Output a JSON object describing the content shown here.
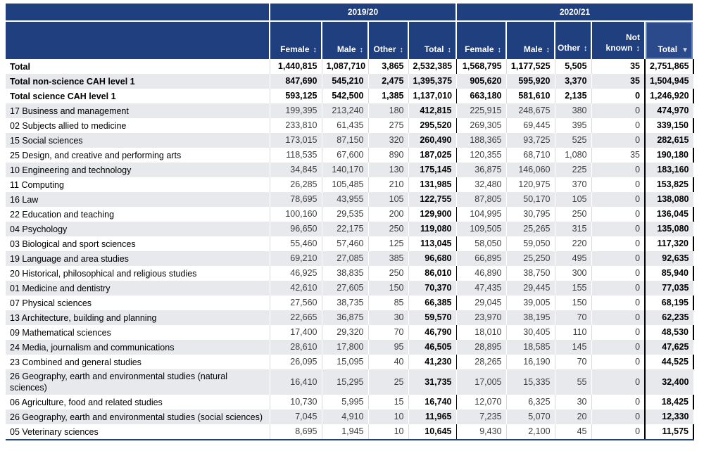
{
  "table": {
    "year_groups": [
      {
        "label": "2019/20",
        "span": 4
      },
      {
        "label": "2020/21",
        "span": 5
      }
    ],
    "columns": [
      {
        "label": "Female",
        "arrow": "↕"
      },
      {
        "label": "Male",
        "arrow": "↕"
      },
      {
        "label": "Other",
        "arrow": "↕"
      },
      {
        "label": "Total",
        "arrow": "↕"
      },
      {
        "label": "Female",
        "arrow": "↕"
      },
      {
        "label": "Male",
        "arrow": "↕"
      },
      {
        "label": "Other",
        "arrow": "↕"
      },
      {
        "label": "Not known",
        "arrow": "↕"
      },
      {
        "label": "Total",
        "arrow": "▼"
      }
    ],
    "rows": [
      {
        "label": "Total",
        "bold": true,
        "values": [
          "1,440,815",
          "1,087,710",
          "3,865",
          "2,532,385",
          "1,568,795",
          "1,177,525",
          "5,505",
          "35",
          "2,751,865"
        ]
      },
      {
        "label": "Total non-science CAH level 1",
        "bold": true,
        "values": [
          "847,690",
          "545,210",
          "2,475",
          "1,395,375",
          "905,620",
          "595,920",
          "3,370",
          "35",
          "1,504,945"
        ]
      },
      {
        "label": "Total science CAH level 1",
        "bold": true,
        "values": [
          "593,125",
          "542,500",
          "1,385",
          "1,137,010",
          "663,180",
          "581,610",
          "2,135",
          "0",
          "1,246,920"
        ]
      },
      {
        "label": "17 Business and management",
        "bold": false,
        "values": [
          "199,395",
          "213,240",
          "180",
          "412,815",
          "225,915",
          "248,675",
          "380",
          "0",
          "474,970"
        ]
      },
      {
        "label": "02 Subjects allied to medicine",
        "bold": false,
        "values": [
          "233,810",
          "61,435",
          "275",
          "295,520",
          "269,305",
          "69,445",
          "395",
          "0",
          "339,150"
        ]
      },
      {
        "label": "15 Social sciences",
        "bold": false,
        "values": [
          "173,015",
          "87,150",
          "320",
          "260,490",
          "188,365",
          "93,725",
          "525",
          "0",
          "282,615"
        ]
      },
      {
        "label": "25 Design, and creative and performing arts",
        "bold": false,
        "values": [
          "118,535",
          "67,600",
          "890",
          "187,025",
          "120,355",
          "68,710",
          "1,080",
          "35",
          "190,180"
        ]
      },
      {
        "label": "10 Engineering and technology",
        "bold": false,
        "values": [
          "34,845",
          "140,170",
          "130",
          "175,145",
          "36,875",
          "146,060",
          "225",
          "0",
          "183,160"
        ]
      },
      {
        "label": "11 Computing",
        "bold": false,
        "values": [
          "26,285",
          "105,485",
          "210",
          "131,985",
          "32,480",
          "120,975",
          "370",
          "0",
          "153,825"
        ]
      },
      {
        "label": "16 Law",
        "bold": false,
        "values": [
          "78,695",
          "43,955",
          "105",
          "122,755",
          "87,805",
          "50,170",
          "105",
          "0",
          "138,080"
        ]
      },
      {
        "label": "22 Education and teaching",
        "bold": false,
        "values": [
          "100,160",
          "29,535",
          "200",
          "129,900",
          "104,995",
          "30,795",
          "250",
          "0",
          "136,045"
        ]
      },
      {
        "label": "04 Psychology",
        "bold": false,
        "values": [
          "96,650",
          "22,175",
          "250",
          "119,080",
          "109,505",
          "25,265",
          "315",
          "0",
          "135,080"
        ]
      },
      {
        "label": "03 Biological and sport sciences",
        "bold": false,
        "values": [
          "55,460",
          "57,460",
          "125",
          "113,045",
          "58,050",
          "59,050",
          "220",
          "0",
          "117,320"
        ]
      },
      {
        "label": "19 Language and area studies",
        "bold": false,
        "values": [
          "69,210",
          "27,085",
          "385",
          "96,680",
          "66,895",
          "25,250",
          "495",
          "0",
          "92,635"
        ]
      },
      {
        "label": "20 Historical, philosophical and religious studies",
        "bold": false,
        "values": [
          "46,925",
          "38,835",
          "250",
          "86,010",
          "46,890",
          "38,750",
          "300",
          "0",
          "85,940"
        ]
      },
      {
        "label": "01 Medicine and dentistry",
        "bold": false,
        "values": [
          "42,610",
          "27,605",
          "150",
          "70,370",
          "47,435",
          "29,445",
          "155",
          "0",
          "77,035"
        ]
      },
      {
        "label": "07 Physical sciences",
        "bold": false,
        "values": [
          "27,560",
          "38,735",
          "85",
          "66,385",
          "29,045",
          "39,005",
          "150",
          "0",
          "68,195"
        ]
      },
      {
        "label": "13 Architecture, building and planning",
        "bold": false,
        "values": [
          "22,665",
          "36,875",
          "30",
          "59,570",
          "23,970",
          "38,195",
          "70",
          "0",
          "62,235"
        ]
      },
      {
        "label": "09 Mathematical sciences",
        "bold": false,
        "values": [
          "17,400",
          "29,320",
          "70",
          "46,790",
          "18,010",
          "30,405",
          "110",
          "0",
          "48,530"
        ]
      },
      {
        "label": "24 Media, journalism and communications",
        "bold": false,
        "values": [
          "28,610",
          "17,800",
          "95",
          "46,505",
          "28,895",
          "18,585",
          "145",
          "0",
          "47,625"
        ]
      },
      {
        "label": "23 Combined and general studies",
        "bold": false,
        "values": [
          "26,095",
          "15,095",
          "40",
          "41,230",
          "28,265",
          "16,190",
          "70",
          "0",
          "44,525"
        ]
      },
      {
        "label": "26 Geography, earth and environmental studies (natural sciences)",
        "bold": false,
        "values": [
          "16,410",
          "15,295",
          "25",
          "31,735",
          "17,005",
          "15,335",
          "55",
          "0",
          "32,400"
        ]
      },
      {
        "label": "06 Agriculture, food and related studies",
        "bold": false,
        "values": [
          "10,730",
          "5,995",
          "15",
          "16,740",
          "12,070",
          "6,325",
          "30",
          "0",
          "18,425"
        ]
      },
      {
        "label": "26 Geography, earth and environmental studies (social sciences)",
        "bold": false,
        "values": [
          "7,045",
          "4,910",
          "10",
          "11,965",
          "7,235",
          "5,070",
          "20",
          "0",
          "12,330"
        ]
      },
      {
        "label": "05 Veterinary sciences",
        "bold": false,
        "values": [
          "8,695",
          "1,945",
          "10",
          "10,645",
          "9,430",
          "2,100",
          "45",
          "0",
          "11,575"
        ]
      }
    ]
  },
  "colors": {
    "header_blue": "#1f3f7e",
    "sorted_header_bg": "#2a4a8c",
    "sorted_header_ring": "#6080c4",
    "stripe": "#e8e9ed",
    "black_border": "#000000"
  }
}
